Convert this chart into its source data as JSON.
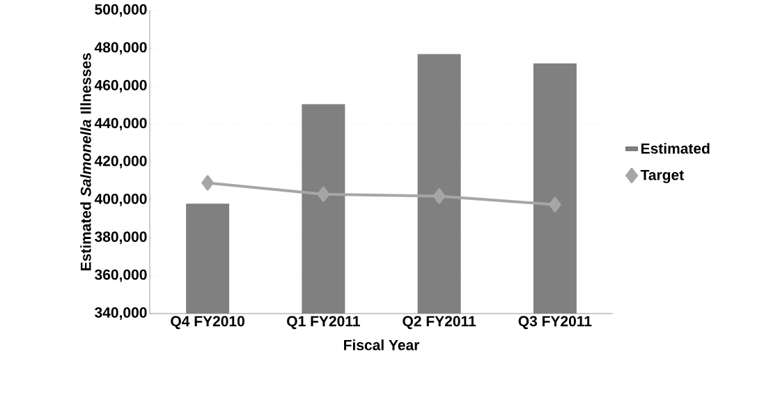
{
  "chart_data": {
    "type": "bar",
    "xlabel": "Fiscal Year",
    "ylabel": "Estimated *Salmonella* Illnesses",
    "categories": [
      "Q4 FY2010",
      "Q1 FY2011",
      "Q2 FY2011",
      "Q3 FY2011"
    ],
    "series": [
      {
        "name": "Estimated",
        "color": "#808080",
        "values": [
          398000,
          450500,
          477000,
          472000
        ]
      },
      {
        "name": "Target",
        "type": "line",
        "color": "#a6a6a6",
        "marker": "diamond",
        "values": [
          409000,
          403000,
          402000,
          397500
        ]
      }
    ],
    "ylim": [
      340000,
      500000
    ],
    "yticks": [
      {
        "value": 340000,
        "label": "340,000"
      },
      {
        "value": 360000,
        "label": "360,000"
      },
      {
        "value": 380000,
        "label": "380,000"
      },
      {
        "value": 400000,
        "label": "400,000"
      },
      {
        "value": 420000,
        "label": "420,000"
      },
      {
        "value": 440000,
        "label": "440,000"
      },
      {
        "value": 460000,
        "label": "460,000"
      },
      {
        "value": 480000,
        "label": "480,000"
      },
      {
        "value": 500000,
        "label": "500,000"
      }
    ],
    "grid": "y",
    "legend": "right"
  }
}
